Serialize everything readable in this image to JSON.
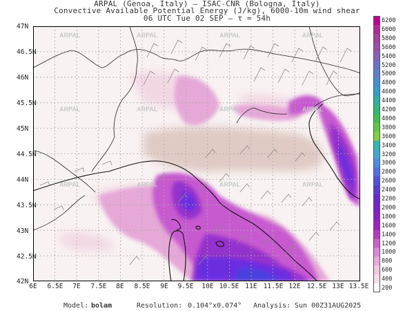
{
  "title": {
    "line1": "ARPAL (Genoa, Italy)  —  ISAC-CNR (Bologna, Italy)",
    "line2": "Convective Available Potential Energy (J/kg), 6000-10m wind shear",
    "line3": "06 UTC Tue 02 SEP  –  τ = 54h"
  },
  "watermark": "ARPAL",
  "lat_labels": [
    "47N",
    "46.5N",
    "46N",
    "45.5N",
    "45N",
    "44.5N",
    "44N",
    "43.5N",
    "43N",
    "42.5N",
    "42N"
  ],
  "lon_labels": [
    "6E",
    "6.5E",
    "7E",
    "7.5E",
    "8E",
    "8.5E",
    "9E",
    "9.5E",
    "10E",
    "10.5E",
    "11E",
    "11.5E",
    "12E",
    "12.5E",
    "13E",
    "13.5E"
  ],
  "colorbar": {
    "levels": [
      "6200",
      "6000",
      "5800",
      "5600",
      "5400",
      "5200",
      "5000",
      "4800",
      "4600",
      "4400",
      "4200",
      "4000",
      "3800",
      "3600",
      "3400",
      "3200",
      "3000",
      "2800",
      "2600",
      "2400",
      "2200",
      "2000",
      "1800",
      "1600",
      "1400",
      "1200",
      "1000",
      "800",
      "600",
      "400",
      "200"
    ],
    "colors": [
      "#c0008c",
      "#b62894",
      "#a8409c",
      "#9a50a8",
      "#8860b8",
      "#7070c4",
      "#5a80cc",
      "#4090d4",
      "#30a0c8",
      "#30b0a0",
      "#30b878",
      "#40c050",
      "#60c840",
      "#80d040",
      "#30b8b0",
      "#40a8d0",
      "#4c8ce0",
      "#5070e8",
      "#5050e0",
      "#5a3ad8",
      "#6828d0",
      "#7a22cc",
      "#8c20c8",
      "#a020c4",
      "#b838c8",
      "#cc60d0",
      "#dc88d8",
      "#e8aadc",
      "#f0c8e4",
      "#f4dcea",
      "#ffffff"
    ]
  },
  "footer": {
    "model_label": "Model:",
    "model": "bolam",
    "resolution_label": "Resolution:",
    "resolution": "0.104°x0.074°",
    "analysis_label": "Analysis:",
    "analysis": "Sun 00Z31AUG2025"
  },
  "map_colors": {
    "land_bg": "#f8f2f2",
    "tan": "#e0cac4",
    "light_pink": "#f3d8e4",
    "pink": "#e6a8d8",
    "magenta": "#c85ad0",
    "purple": "#9430cc",
    "violet": "#6a2ee0",
    "blue": "#4840e0"
  }
}
